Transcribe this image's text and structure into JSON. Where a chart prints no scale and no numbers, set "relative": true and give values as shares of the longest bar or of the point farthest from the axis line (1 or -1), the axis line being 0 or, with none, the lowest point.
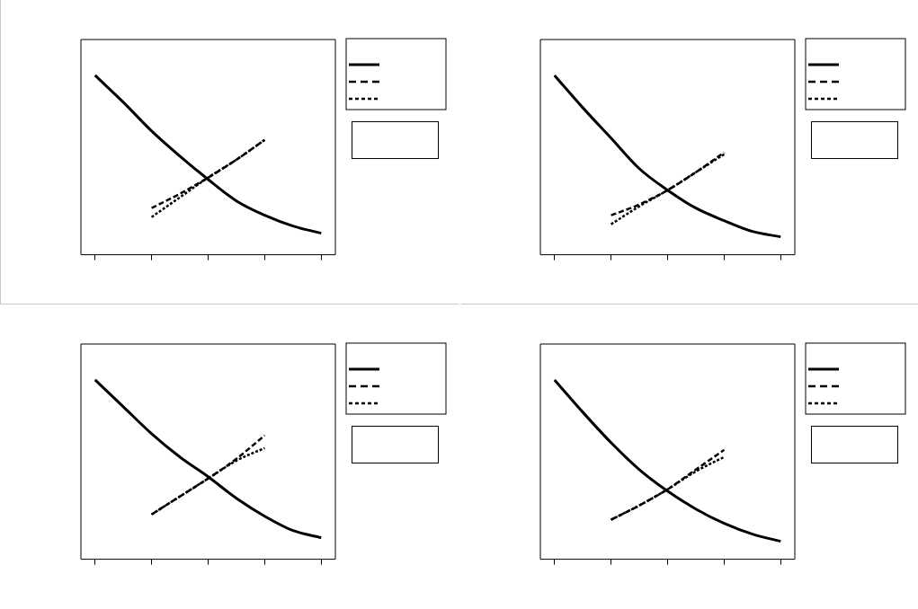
{
  "chart_data": [
    {
      "type": "line",
      "relative": true,
      "marker": "none",
      "categories": [
        null,
        null,
        null,
        null,
        null,
        null,
        null,
        null,
        null
      ],
      "series": [
        {
          "color": "#000000",
          "line_style": "solid",
          "values": [
            1,
            0.85,
            0.69,
            0.55,
            0.42,
            0.3,
            0.22,
            0.16,
            0.12
          ]
        },
        {
          "color": "#000000",
          "line_style": "dashed",
          "values": [
            null,
            null,
            0.26,
            0.34,
            0.43,
            0.53,
            0.64,
            null,
            null
          ]
        },
        {
          "color": "#000000",
          "line_style": "dotted",
          "values": [
            null,
            null,
            0.21,
            0.32,
            0.43,
            0.53,
            0.64,
            null,
            null
          ]
        }
      ]
    },
    {
      "type": "line",
      "relative": true,
      "marker": "none",
      "categories": [
        null,
        null,
        null,
        null,
        null,
        null,
        null,
        null,
        null
      ],
      "series": [
        {
          "color": "#000000",
          "line_style": "solid",
          "values": [
            1,
            0.82,
            0.65,
            0.48,
            0.36,
            0.26,
            0.19,
            0.13,
            0.1
          ]
        },
        {
          "color": "#000000",
          "line_style": "dashed",
          "values": [
            null,
            null,
            0.22,
            0.28,
            0.36,
            0.46,
            0.57,
            null,
            null
          ]
        },
        {
          "color": "#000000",
          "line_style": "dotted",
          "values": [
            null,
            null,
            0.17,
            0.27,
            0.36,
            0.46,
            0.56,
            null,
            null
          ]
        }
      ]
    },
    {
      "type": "line",
      "relative": true,
      "marker": "none",
      "categories": [
        null,
        null,
        null,
        null,
        null,
        null,
        null,
        null,
        null
      ],
      "series": [
        {
          "color": "#000000",
          "line_style": "solid",
          "values": [
            1,
            0.85,
            0.7,
            0.57,
            0.46,
            0.34,
            0.24,
            0.16,
            0.12
          ]
        },
        {
          "color": "#000000",
          "line_style": "dashed",
          "values": [
            null,
            null,
            0.25,
            0.35,
            0.45,
            0.56,
            0.69,
            null,
            null
          ]
        },
        {
          "color": "#000000",
          "line_style": "dotted",
          "values": [
            null,
            null,
            0.25,
            0.35,
            0.45,
            0.55,
            0.62,
            null,
            null
          ]
        }
      ]
    },
    {
      "type": "line",
      "relative": true,
      "marker": "none",
      "categories": [
        null,
        null,
        null,
        null,
        null,
        null,
        null,
        null,
        null
      ],
      "series": [
        {
          "color": "#000000",
          "line_style": "solid",
          "values": [
            1,
            0.82,
            0.65,
            0.5,
            0.38,
            0.28,
            0.2,
            0.14,
            0.1
          ]
        },
        {
          "color": "#000000",
          "line_style": "dashed",
          "values": [
            null,
            null,
            0.22,
            0.3,
            0.39,
            0.5,
            0.61,
            null,
            null
          ]
        },
        {
          "color": "#000000",
          "line_style": "dotted",
          "values": [
            null,
            null,
            0.22,
            0.3,
            0.39,
            0.49,
            0.57,
            null,
            null
          ]
        }
      ]
    }
  ]
}
